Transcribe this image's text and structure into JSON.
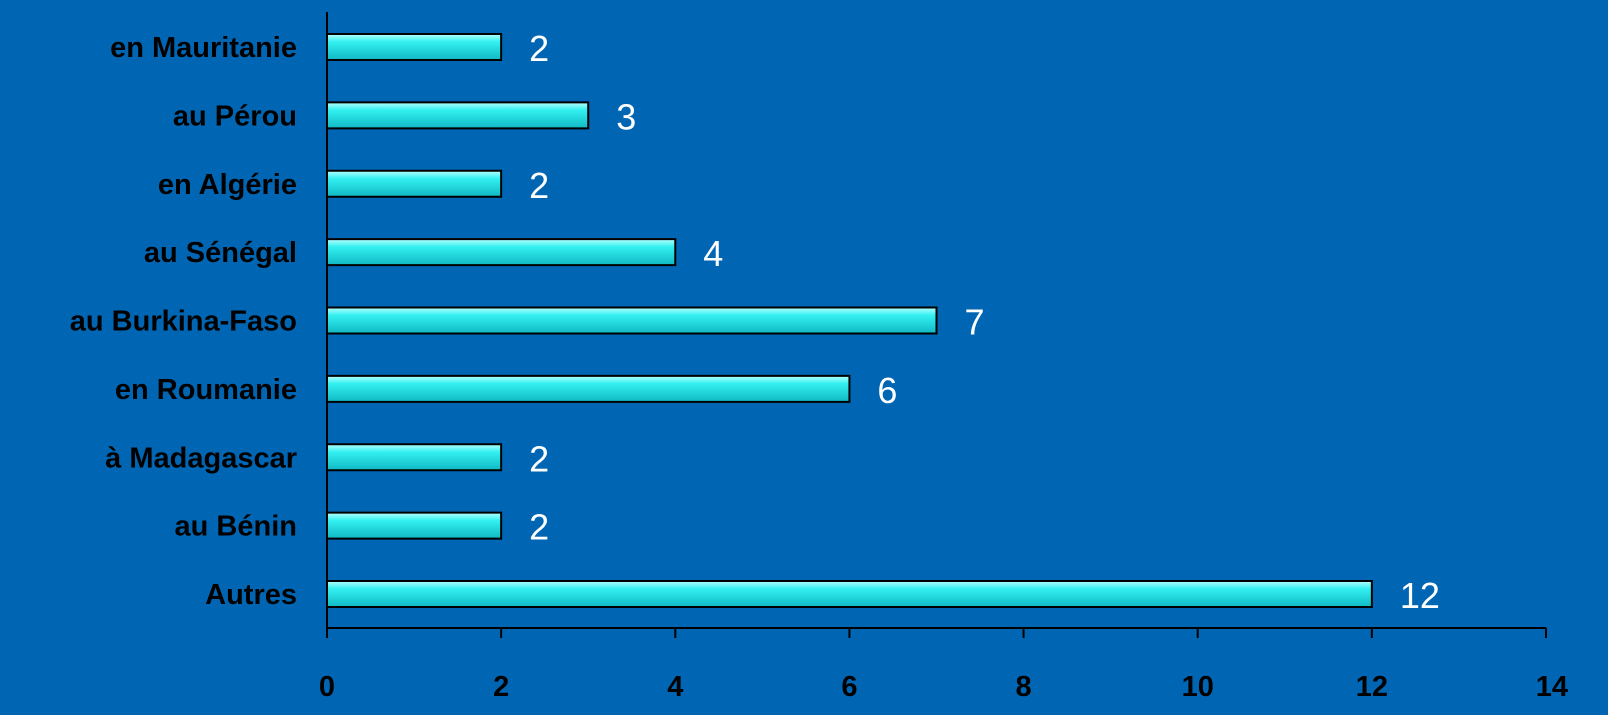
{
  "chart_data": {
    "type": "bar",
    "orientation": "horizontal",
    "title": "",
    "xlabel": "",
    "ylabel": "",
    "categories": [
      "en Mauritanie",
      "au Pérou",
      "en Algérie",
      "au Sénégal",
      "au Burkina-Faso",
      "en Roumanie",
      "à Madagascar",
      "au Bénin",
      "Autres"
    ],
    "values": [
      2,
      3,
      2,
      4,
      7,
      6,
      2,
      2,
      12
    ],
    "data_labels": [
      "2",
      "3",
      "2",
      "4",
      "7",
      "6",
      "2",
      "2",
      "12"
    ],
    "xlim": [
      0,
      14
    ],
    "x_ticks": [
      "0",
      "2",
      "4",
      "6",
      "8",
      "10",
      "12",
      "14"
    ],
    "grid": false,
    "legend": "none",
    "colors": {
      "background": "#0066B3",
      "bar_fill": "#33F0F0",
      "bar_highlight": "#B8FFFF",
      "bar_shadow": "#10B8C4",
      "bar_stroke": "#000000",
      "axis": "#000000",
      "category_text": "#000000",
      "tick_text": "#000000",
      "data_label_text": "#FFFFFF"
    }
  }
}
